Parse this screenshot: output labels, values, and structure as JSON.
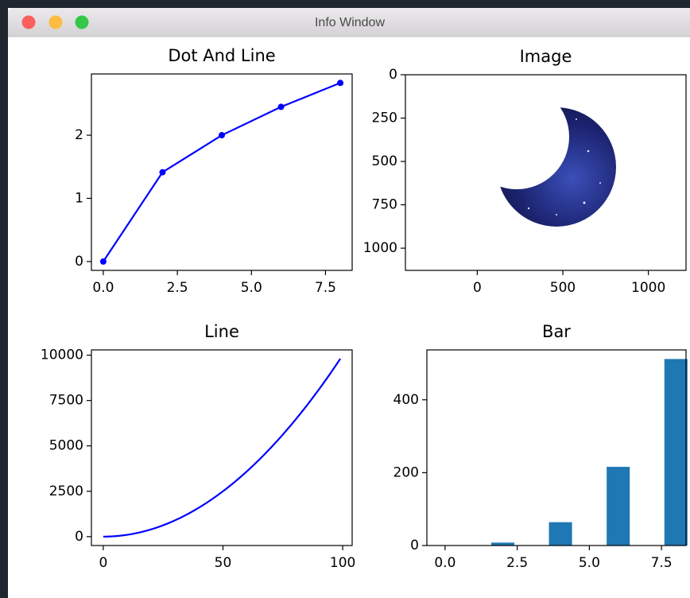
{
  "window": {
    "title": "Info Window"
  },
  "chart_data": [
    {
      "type": "line",
      "title": "Dot And Line",
      "x": [
        0,
        2,
        4,
        6,
        8
      ],
      "values": [
        0,
        1.414,
        2,
        2.449,
        2.828
      ],
      "color": "#0000ff",
      "markers": true,
      "xlim": [
        -0.4,
        8.4
      ],
      "ylim": [
        -0.14,
        2.97
      ],
      "xticks": [
        {
          "value": 0,
          "label": "0.0"
        },
        {
          "value": 2.5,
          "label": "2.5"
        },
        {
          "value": 5,
          "label": "5.0"
        },
        {
          "value": 7.5,
          "label": "7.5"
        }
      ],
      "yticks": [
        0,
        1,
        2
      ]
    },
    {
      "type": "image",
      "title": "Image",
      "xlim": [
        -420,
        1220
      ],
      "ylim": [
        1128,
        0
      ],
      "xticks": [
        0,
        500,
        1000
      ],
      "yticks": [
        0,
        250,
        500,
        750,
        1000
      ]
    },
    {
      "type": "line",
      "title": "Line",
      "color": "#0000ff",
      "markers": false,
      "x": [
        0,
        1,
        2,
        3,
        4,
        5,
        6,
        7,
        8,
        9,
        10,
        11,
        12,
        13,
        14,
        15,
        16,
        17,
        18,
        19,
        20,
        21,
        22,
        23,
        24,
        25,
        26,
        27,
        28,
        29,
        30,
        31,
        32,
        33,
        34,
        35,
        36,
        37,
        38,
        39,
        40,
        41,
        42,
        43,
        44,
        45,
        46,
        47,
        48,
        49,
        50,
        51,
        52,
        53,
        54,
        55,
        56,
        57,
        58,
        59,
        60,
        61,
        62,
        63,
        64,
        65,
        66,
        67,
        68,
        69,
        70,
        71,
        72,
        73,
        74,
        75,
        76,
        77,
        78,
        79,
        80,
        81,
        82,
        83,
        84,
        85,
        86,
        87,
        88,
        89,
        90,
        91,
        92,
        93,
        94,
        95,
        96,
        97,
        98,
        99
      ],
      "values": [
        0,
        1,
        4,
        9,
        16,
        25,
        36,
        49,
        64,
        81,
        100,
        121,
        144,
        169,
        196,
        225,
        256,
        289,
        324,
        361,
        400,
        441,
        484,
        529,
        576,
        625,
        676,
        729,
        784,
        841,
        900,
        961,
        1024,
        1089,
        1156,
        1225,
        1296,
        1369,
        1444,
        1521,
        1600,
        1681,
        1764,
        1849,
        1936,
        2025,
        2116,
        2209,
        2304,
        2401,
        2500,
        2601,
        2704,
        2809,
        2916,
        3025,
        3136,
        3249,
        3364,
        3481,
        3600,
        3721,
        3844,
        3969,
        4096,
        4225,
        4356,
        4489,
        4624,
        4761,
        4900,
        5041,
        5184,
        5329,
        5476,
        5625,
        5776,
        5929,
        6084,
        6241,
        6400,
        6561,
        6724,
        6889,
        7056,
        7225,
        7396,
        7569,
        7744,
        7921,
        8100,
        8281,
        8464,
        8649,
        8836,
        9025,
        9216,
        9409,
        9604,
        9801
      ],
      "xlim": [
        -4.95,
        103.95
      ],
      "ylim": [
        -490,
        10290
      ],
      "xticks": [
        0,
        50,
        100
      ],
      "yticks": [
        0,
        2500,
        5000,
        7500,
        10000
      ]
    },
    {
      "type": "bar",
      "title": "Bar",
      "x": [
        0,
        2,
        4,
        6,
        8
      ],
      "values": [
        0,
        8,
        64,
        216,
        512
      ],
      "color": "#1f77b4",
      "xlim": [
        -0.63,
        8.35
      ],
      "ylim": [
        0,
        537
      ],
      "xticks": [
        {
          "value": 0,
          "label": "0.0"
        },
        {
          "value": 2.5,
          "label": "2.5"
        },
        {
          "value": 5,
          "label": "5.0"
        },
        {
          "value": 7.5,
          "label": "7.5"
        }
      ],
      "yticks": [
        0,
        200,
        400
      ]
    }
  ]
}
